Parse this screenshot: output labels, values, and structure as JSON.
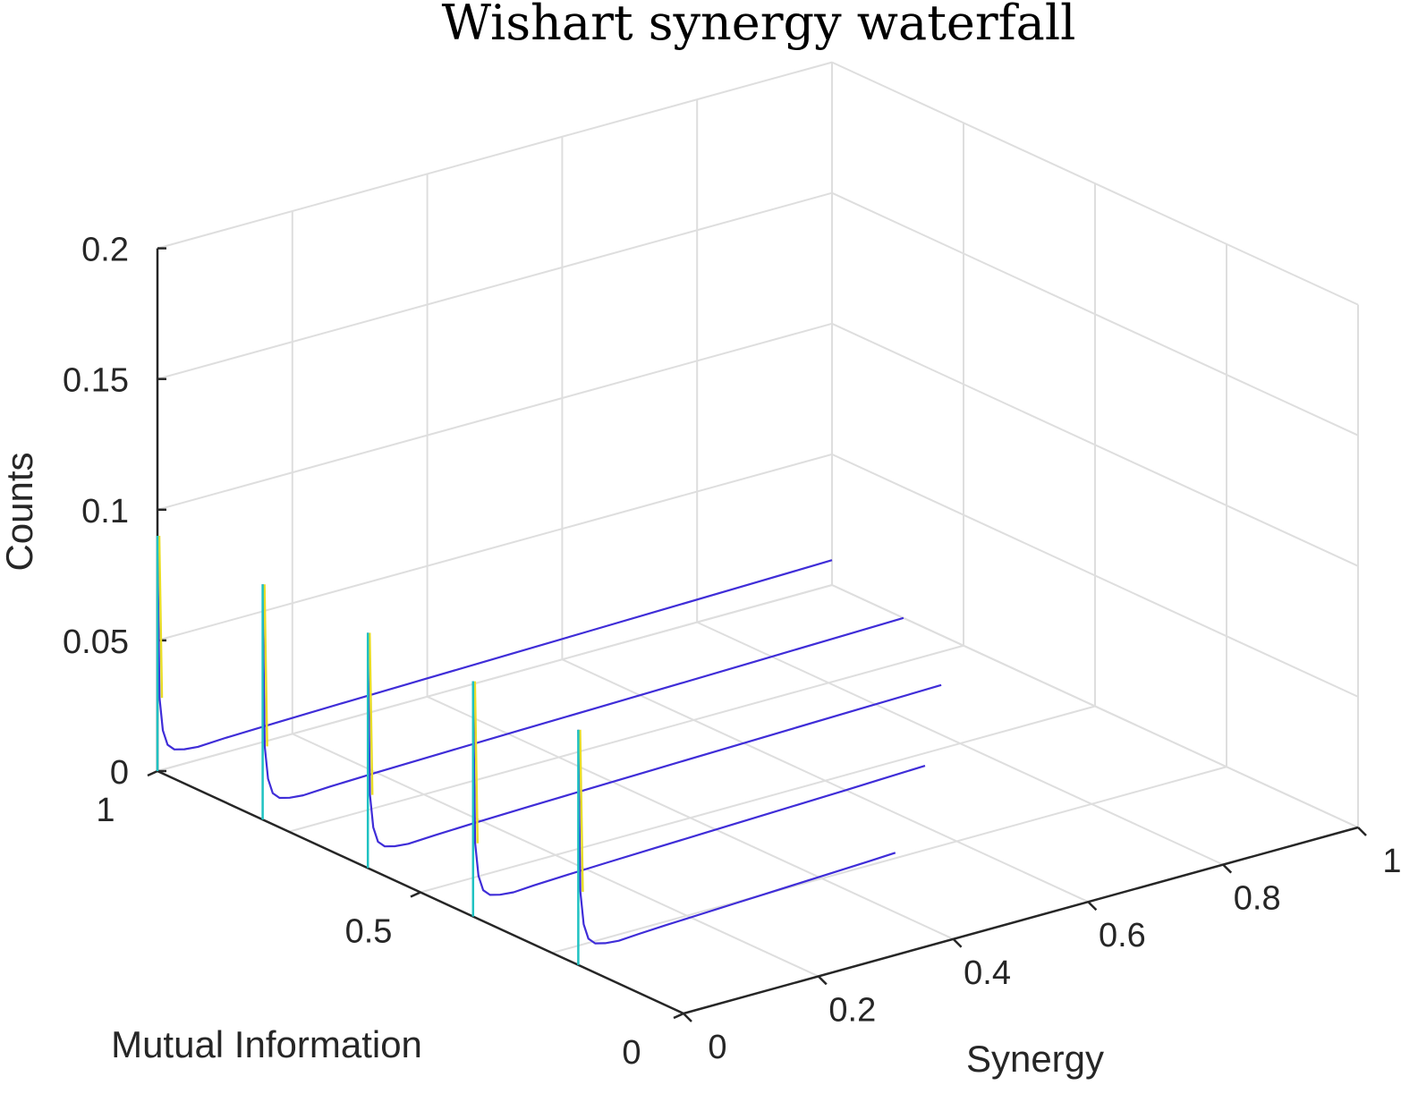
{
  "chart_data": {
    "type": "line",
    "variant": "3d-waterfall",
    "title": "Wishart synergy waterfall",
    "xlabel": "Synergy",
    "ylabel": "Mutual Information",
    "zlabel": "Counts",
    "xlim": [
      0,
      1
    ],
    "ylim": [
      0,
      1
    ],
    "zlim": [
      0,
      0.2
    ],
    "x_ticks": [
      "0",
      "0.2",
      "0.4",
      "0.6",
      "0.8",
      "1"
    ],
    "y_ticks": [
      "0",
      "0.5",
      "1"
    ],
    "z_ticks": [
      "0",
      "0.05",
      "0.1",
      "0.15",
      "0.2"
    ],
    "grid": true,
    "colormap": "parula",
    "series": [
      {
        "mutual_information": 0.2,
        "synergy_max": 0.47,
        "spike": 0.09,
        "values": [
          [
            0.0,
            0.09
          ],
          [
            0.003,
            0.028
          ],
          [
            0.008,
            0.015
          ],
          [
            0.015,
            0.009
          ],
          [
            0.025,
            0.0065
          ],
          [
            0.04,
            0.0055
          ],
          [
            0.06,
            0.005
          ],
          [
            0.09,
            0.0055
          ],
          [
            0.13,
            0.006
          ],
          [
            0.18,
            0.0065
          ],
          [
            0.23,
            0.007
          ],
          [
            0.28,
            0.0075
          ],
          [
            0.33,
            0.008
          ],
          [
            0.38,
            0.0085
          ],
          [
            0.43,
            0.009
          ],
          [
            0.47,
            0.0095
          ]
        ]
      },
      {
        "mutual_information": 0.4,
        "synergy_max": 0.67,
        "spike": 0.09,
        "values": [
          [
            0.0,
            0.09
          ],
          [
            0.003,
            0.028
          ],
          [
            0.008,
            0.015
          ],
          [
            0.015,
            0.009
          ],
          [
            0.025,
            0.0065
          ],
          [
            0.04,
            0.0055
          ],
          [
            0.06,
            0.005
          ],
          [
            0.09,
            0.0055
          ],
          [
            0.14,
            0.006
          ],
          [
            0.2,
            0.0065
          ],
          [
            0.27,
            0.007
          ],
          [
            0.34,
            0.0075
          ],
          [
            0.41,
            0.008
          ],
          [
            0.48,
            0.0085
          ],
          [
            0.55,
            0.009
          ],
          [
            0.61,
            0.0095
          ],
          [
            0.67,
            0.01
          ]
        ]
      },
      {
        "mutual_information": 0.6,
        "synergy_max": 0.85,
        "spike": 0.09,
        "values": [
          [
            0.0,
            0.09
          ],
          [
            0.003,
            0.028
          ],
          [
            0.008,
            0.015
          ],
          [
            0.015,
            0.009
          ],
          [
            0.025,
            0.0065
          ],
          [
            0.04,
            0.0055
          ],
          [
            0.06,
            0.005
          ],
          [
            0.1,
            0.0055
          ],
          [
            0.16,
            0.006
          ],
          [
            0.24,
            0.0065
          ],
          [
            0.33,
            0.007
          ],
          [
            0.43,
            0.0075
          ],
          [
            0.53,
            0.008
          ],
          [
            0.63,
            0.0085
          ],
          [
            0.73,
            0.009
          ],
          [
            0.85,
            0.0095
          ]
        ]
      },
      {
        "mutual_information": 0.8,
        "synergy_max": 0.95,
        "spike": 0.09,
        "values": [
          [
            0.0,
            0.09
          ],
          [
            0.003,
            0.028
          ],
          [
            0.008,
            0.015
          ],
          [
            0.015,
            0.009
          ],
          [
            0.025,
            0.0065
          ],
          [
            0.04,
            0.0055
          ],
          [
            0.06,
            0.005
          ],
          [
            0.1,
            0.0055
          ],
          [
            0.17,
            0.006
          ],
          [
            0.27,
            0.0065
          ],
          [
            0.38,
            0.007
          ],
          [
            0.5,
            0.0075
          ],
          [
            0.62,
            0.008
          ],
          [
            0.73,
            0.0085
          ],
          [
            0.84,
            0.009
          ],
          [
            0.95,
            0.0095
          ]
        ]
      },
      {
        "mutual_information": 1.0,
        "synergy_max": 1.0,
        "spike": 0.09,
        "values": [
          [
            0.0,
            0.09
          ],
          [
            0.003,
            0.028
          ],
          [
            0.008,
            0.015
          ],
          [
            0.015,
            0.009
          ],
          [
            0.025,
            0.0065
          ],
          [
            0.04,
            0.0055
          ],
          [
            0.06,
            0.005
          ],
          [
            0.1,
            0.0055
          ],
          [
            0.18,
            0.006
          ],
          [
            0.28,
            0.0065
          ],
          [
            0.4,
            0.007
          ],
          [
            0.52,
            0.0075
          ],
          [
            0.64,
            0.008
          ],
          [
            0.76,
            0.0085
          ],
          [
            0.88,
            0.009
          ],
          [
            1.0,
            0.0095
          ]
        ]
      }
    ],
    "colors": {
      "curve": "#3f2dd8",
      "tail": "#3a6ef0",
      "spike": "#1fc2c2",
      "spike_top": "#e8dc28",
      "axis": "#262626",
      "grid": "#dedede"
    }
  }
}
